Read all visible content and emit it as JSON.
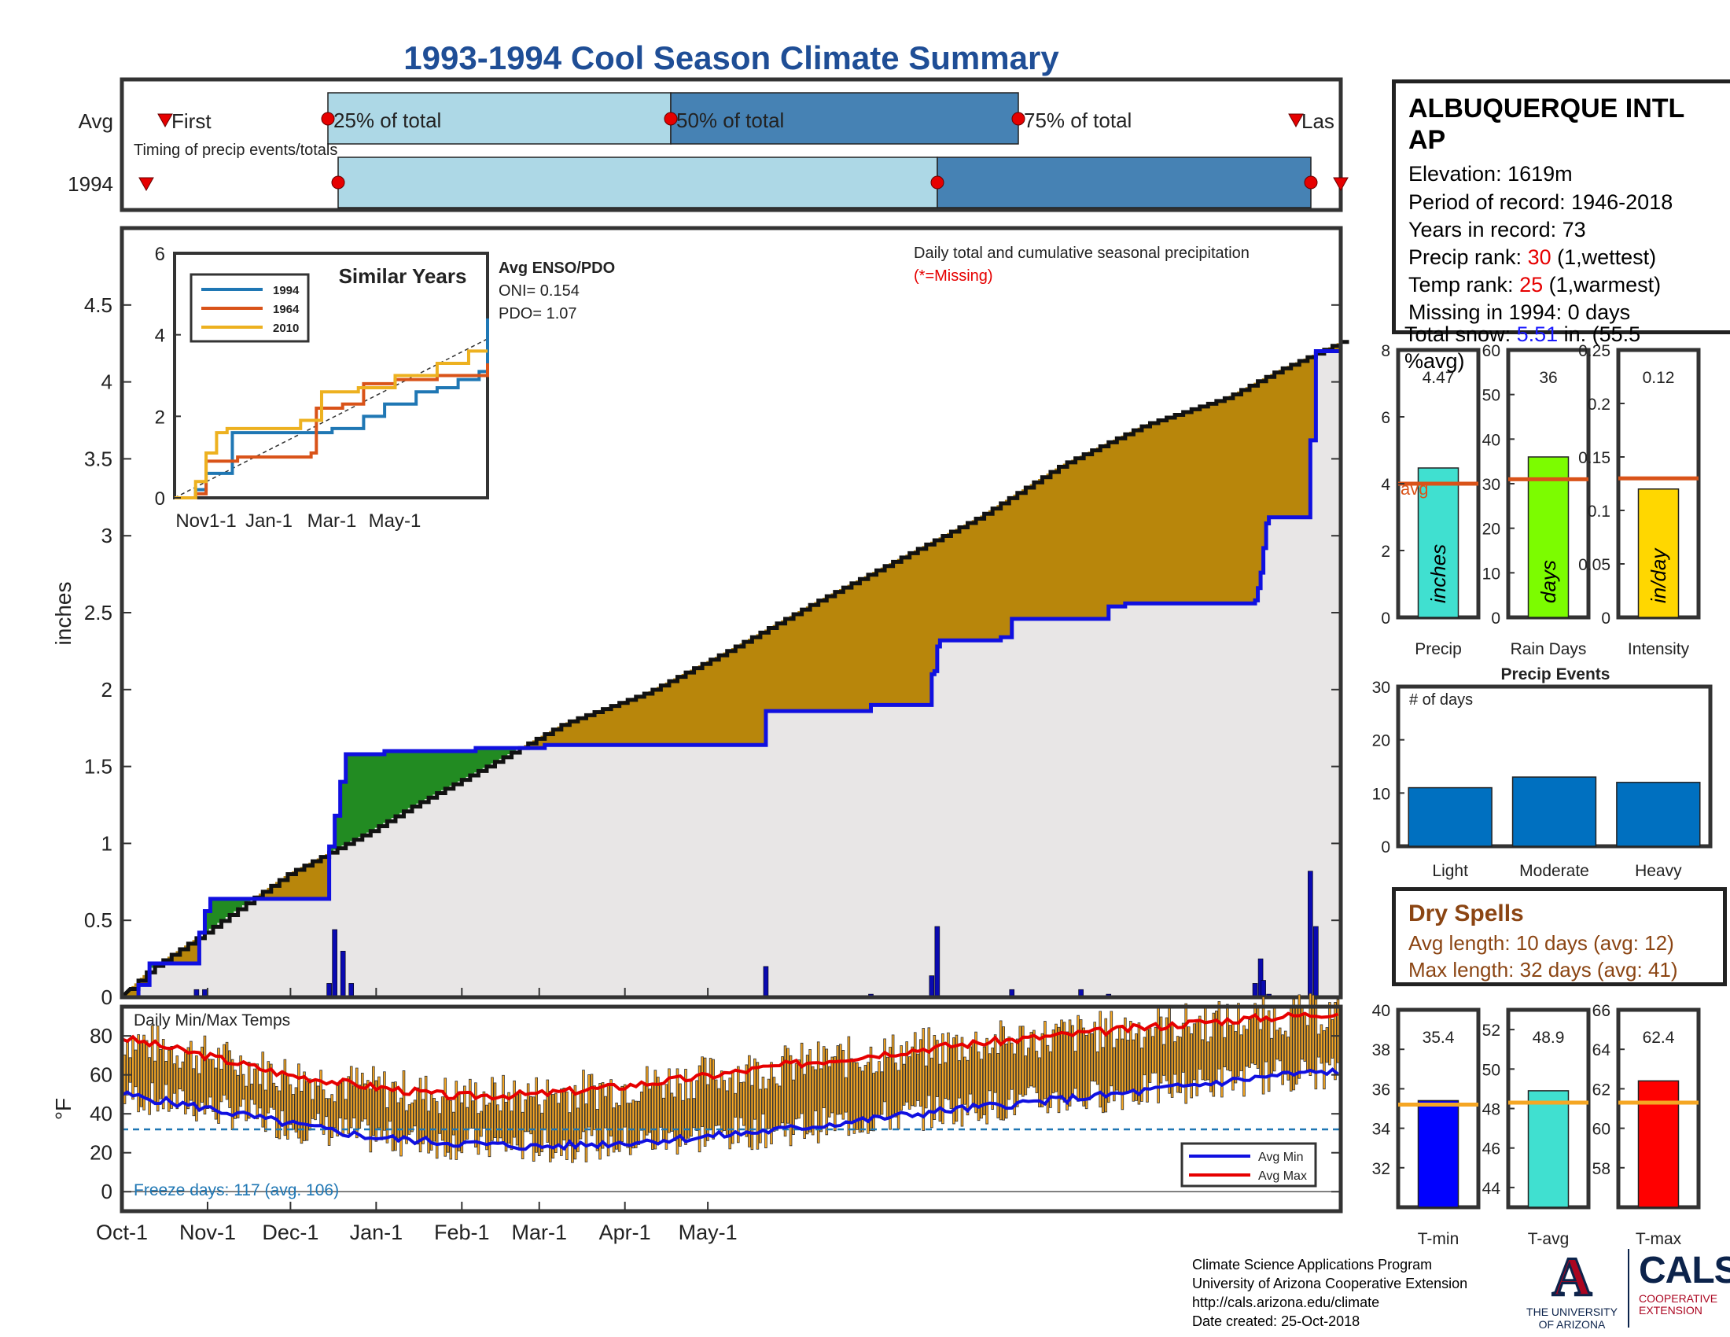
{
  "title": "1993-1994 Cool Season Climate Summary",
  "timing": {
    "row_labels": [
      "Avg",
      "1994"
    ],
    "first_label": "First",
    "last_label": "Las",
    "subtitle": "Timing of precip events/totals",
    "avg_markers": [
      "25% of total",
      "50% of total",
      "75% of total"
    ]
  },
  "station": {
    "name": "ALBUQUERQUE INTL AP",
    "elevation": "Elevation: 1619m",
    "period": "Period of record: 1946-2018",
    "years": "Years in record: 73",
    "precip_rank_label": "Precip rank: ",
    "precip_rank": "30",
    "precip_rank_note": " (1,wettest)",
    "temp_rank_label": "Temp rank: ",
    "temp_rank": "25",
    "temp_rank_note": " (1,warmest)",
    "missing": "Missing in 1994: 0 days",
    "snow_label": "Total snow: ",
    "snow_value": "5.51",
    "snow_unit": " in. (55.5",
    "snow_pct": "%avg)"
  },
  "main_chart": {
    "ylabel": "inches",
    "note": "Daily total and cumulative seasonal precipitation",
    "missing_note": "(*=Missing)"
  },
  "enso": {
    "title": "Avg ENSO/PDO",
    "oni": "ONI= 0.154",
    "pdo": "PDO= 1.07"
  },
  "similar": {
    "title": "Similar Years",
    "legend": [
      "1994",
      "1964",
      "2010"
    ]
  },
  "temp_chart": {
    "title": "Daily Min/Max Temps",
    "ylabel": "°F",
    "freeze": "Freeze days: 117 (avg. 106)",
    "legend": [
      "Avg Min",
      "Avg Max"
    ]
  },
  "precip_events": {
    "title": "Precip Events",
    "ylabel": "# of days"
  },
  "dry_spells": {
    "title": "Dry Spells",
    "avg_length": "Avg length: 10 days (avg: 12)",
    "max_length": "Max length: 32 days (avg: 41)"
  },
  "footer": {
    "line1": "Climate Science Applications Program",
    "line2": "University of Arizona Cooperative Extension",
    "line3": "http://cals.arizona.edu/climate",
    "line4": " Date created: 25-Oct-2018"
  },
  "logos": {
    "ua": "THE UNIVERSITY OF ARIZONA",
    "cals": "CALS",
    "cals_sub": "COOPERATIVE EXTENSION"
  },
  "chart_data": [
    {
      "type": "area",
      "name": "cumulative_precip",
      "x_ticks": [
        "Oct-1",
        "Nov-1",
        "Dec-1",
        "Jan-1",
        "Feb-1",
        "Mar-1",
        "Apr-1",
        "May-1"
      ],
      "ylim": [
        0,
        5
      ],
      "y_ticks": [
        "0",
        "0.5",
        "1",
        "1.5",
        "2",
        "2.5",
        "3",
        "3.5",
        "4",
        "4.5"
      ],
      "avg_cumulative": [
        [
          0,
          0
        ],
        [
          10,
          0.18
        ],
        [
          30,
          0.42
        ],
        [
          60,
          0.8
        ],
        [
          90,
          1.08
        ],
        [
          105,
          1.24
        ],
        [
          130,
          1.48
        ],
        [
          160,
          1.78
        ],
        [
          190,
          1.98
        ],
        [
          220,
          2.26
        ],
        [
          250,
          2.56
        ],
        [
          280,
          2.84
        ],
        [
          310,
          3.12
        ],
        [
          340,
          3.46
        ],
        [
          370,
          3.72
        ],
        [
          400,
          3.9
        ],
        [
          419,
          4.08
        ],
        [
          434,
          4.2
        ],
        [
          441,
          4.26
        ]
      ],
      "year_cumulative": [
        [
          0,
          0
        ],
        [
          6,
          0.08
        ],
        [
          10,
          0.22
        ],
        [
          26,
          0.22
        ],
        [
          28,
          0.42
        ],
        [
          30,
          0.56
        ],
        [
          32,
          0.64
        ],
        [
          47,
          0.64
        ],
        [
          73,
          0.64
        ],
        [
          75,
          0.98
        ],
        [
          77,
          1.18
        ],
        [
          79,
          1.4
        ],
        [
          81,
          1.58
        ],
        [
          95,
          1.6
        ],
        [
          128,
          1.62
        ],
        [
          153,
          1.64
        ],
        [
          178,
          1.64
        ],
        [
          202,
          1.64
        ],
        [
          232,
          1.64
        ],
        [
          233,
          1.86
        ],
        [
          270,
          1.86
        ],
        [
          271,
          1.9
        ],
        [
          292,
          1.9
        ],
        [
          293,
          2.1
        ],
        [
          294,
          2.12
        ],
        [
          295,
          2.28
        ],
        [
          296,
          2.32
        ],
        [
          306,
          2.32
        ],
        [
          318,
          2.34
        ],
        [
          322,
          2.46
        ],
        [
          357,
          2.54
        ],
        [
          362,
          2.54
        ],
        [
          363,
          2.56
        ],
        [
          410,
          2.58
        ],
        [
          411,
          2.66
        ],
        [
          412,
          2.76
        ],
        [
          413,
          2.92
        ],
        [
          414,
          3.08
        ],
        [
          415,
          3.12
        ],
        [
          428,
          3.12
        ],
        [
          430,
          3.62
        ],
        [
          432,
          4.2
        ],
        [
          441,
          4.26
        ]
      ],
      "daily": [
        [
          27,
          0.05
        ],
        [
          30,
          0.05
        ],
        [
          75,
          0.09
        ],
        [
          77,
          0.44
        ],
        [
          80,
          0.3
        ],
        [
          83,
          0.09
        ],
        [
          233,
          0.2
        ],
        [
          271,
          0.02
        ],
        [
          293,
          0.14
        ],
        [
          295,
          0.46
        ],
        [
          322,
          0.05
        ],
        [
          347,
          0.05
        ],
        [
          357,
          0.02
        ],
        [
          410,
          0.09
        ],
        [
          412,
          0.25
        ],
        [
          413,
          0.11
        ],
        [
          415,
          0.02
        ],
        [
          430,
          0.82
        ],
        [
          432,
          0.46
        ]
      ],
      "colors": {
        "above": "#228b22",
        "below": "#b8860b",
        "year_line": "#1010e0",
        "avg_line": "#111111",
        "fill": "#e8e6e6"
      }
    },
    {
      "type": "line",
      "name": "similar_years",
      "x_ticks": [
        "Nov1-1",
        "Jan-1",
        "Mar-1",
        "May-1"
      ],
      "y_ticks": [
        "0",
        "2",
        "4",
        "6"
      ],
      "ylim": [
        0,
        6
      ],
      "series": [
        {
          "name": "1994",
          "color": "#1f77b4",
          "values": [
            [
              0,
              0
            ],
            [
              20,
              0.2
            ],
            [
              30,
              0.6
            ],
            [
              50,
              0.6
            ],
            [
              55,
              1.6
            ],
            [
              95,
              1.6
            ],
            [
              150,
              1.7
            ],
            [
              180,
              2.0
            ],
            [
              200,
              2.3
            ],
            [
              230,
              2.6
            ],
            [
              250,
              2.7
            ],
            [
              270,
              2.9
            ],
            [
              290,
              3.1
            ],
            [
              298,
              4.4
            ]
          ]
        },
        {
          "name": "1964",
          "color": "#d95319",
          "values": [
            [
              0,
              0
            ],
            [
              20,
              0.1
            ],
            [
              30,
              0.9
            ],
            [
              60,
              1.0
            ],
            [
              90,
              1.0
            ],
            [
              130,
              1.1
            ],
            [
              135,
              2.2
            ],
            [
              160,
              2.3
            ],
            [
              180,
              2.8
            ],
            [
              210,
              2.9
            ],
            [
              250,
              3.0
            ],
            [
              298,
              3.3
            ]
          ]
        },
        {
          "name": "2010",
          "color": "#edb120",
          "values": [
            [
              0,
              0
            ],
            [
              20,
              0.4
            ],
            [
              30,
              1.1
            ],
            [
              40,
              1.6
            ],
            [
              50,
              1.7
            ],
            [
              100,
              1.7
            ],
            [
              120,
              1.9
            ],
            [
              140,
              2.6
            ],
            [
              175,
              2.7
            ],
            [
              210,
              3.0
            ],
            [
              250,
              3.3
            ],
            [
              280,
              3.6
            ],
            [
              298,
              3.6
            ]
          ]
        }
      ],
      "trend": [
        [
          0,
          0
        ],
        [
          298,
          3.9
        ]
      ]
    },
    {
      "type": "bar",
      "name": "daily_temps",
      "x_ticks": [
        "Oct-1",
        "Nov-1",
        "Dec-1",
        "Jan-1",
        "Feb-1",
        "Mar-1",
        "Apr-1",
        "May-1"
      ],
      "y_ticks": [
        "0",
        "20",
        "40",
        "60",
        "80"
      ],
      "ylim": [
        -10,
        95
      ],
      "avg_max": [
        [
          0,
          79
        ],
        [
          30,
          70
        ],
        [
          60,
          60
        ],
        [
          90,
          54
        ],
        [
          120,
          49
        ],
        [
          150,
          50
        ],
        [
          180,
          54
        ],
        [
          210,
          59
        ],
        [
          240,
          65
        ],
        [
          270,
          70
        ],
        [
          300,
          75
        ],
        [
          330,
          79
        ],
        [
          360,
          83
        ],
        [
          390,
          87
        ],
        [
          420,
          90
        ],
        [
          441,
          92
        ]
      ],
      "avg_min": [
        [
          0,
          50
        ],
        [
          30,
          43
        ],
        [
          60,
          35
        ],
        [
          90,
          28
        ],
        [
          120,
          25
        ],
        [
          150,
          23
        ],
        [
          180,
          25
        ],
        [
          210,
          28
        ],
        [
          240,
          32
        ],
        [
          270,
          37
        ],
        [
          300,
          42
        ],
        [
          330,
          46
        ],
        [
          360,
          50
        ],
        [
          390,
          55
        ],
        [
          420,
          60
        ],
        [
          441,
          62
        ]
      ],
      "freeze_line": 32
    },
    {
      "type": "bar",
      "name": "precip_total",
      "categories": [
        "Precip"
      ],
      "values": [
        4.47
      ],
      "avg": 4.0,
      "ylim": [
        0,
        8
      ],
      "y_ticks": [
        "0",
        "2",
        "4",
        "6",
        "8"
      ],
      "unit": "inches",
      "avg_label": "avg",
      "color": "#40e0d0"
    },
    {
      "type": "bar",
      "name": "rain_days",
      "categories": [
        "Rain Days"
      ],
      "values": [
        36
      ],
      "avg": 31,
      "ylim": [
        0,
        60
      ],
      "y_ticks": [
        "0",
        "10",
        "20",
        "30",
        "40",
        "50",
        "60"
      ],
      "unit": "days",
      "color": "#7cfc00"
    },
    {
      "type": "bar",
      "name": "intensity",
      "categories": [
        "Intensity"
      ],
      "values": [
        0.12
      ],
      "avg": 0.13,
      "ylim": [
        0,
        0.25
      ],
      "y_ticks": [
        "0",
        "0.05",
        "0.1",
        "0.15",
        "0.2",
        "0.25"
      ],
      "unit": "in/day",
      "color": "#ffd700"
    },
    {
      "type": "bar",
      "name": "precip_events",
      "categories": [
        "Light",
        "Moderate",
        "Heavy"
      ],
      "values": [
        11,
        13,
        12
      ],
      "ylim": [
        0,
        30
      ],
      "y_ticks": [
        "0",
        "10",
        "20",
        "30"
      ],
      "color": "#0070c0"
    },
    {
      "type": "bar",
      "name": "t_min",
      "categories": [
        "T-min"
      ],
      "values": [
        35.4
      ],
      "avg": 35.2,
      "ylim": [
        30,
        40
      ],
      "y_ticks": [
        "32",
        "34",
        "36",
        "38",
        "40"
      ],
      "color": "#0000ff"
    },
    {
      "type": "bar",
      "name": "t_avg",
      "categories": [
        "T-avg"
      ],
      "values": [
        48.9
      ],
      "avg": 48.3,
      "ylim": [
        43,
        53
      ],
      "y_ticks": [
        "44",
        "46",
        "48",
        "50",
        "52"
      ],
      "color": "#40e0d0"
    },
    {
      "type": "bar",
      "name": "t_max",
      "categories": [
        "T-max"
      ],
      "values": [
        62.4
      ],
      "avg": 61.3,
      "ylim": [
        56,
        66
      ],
      "y_ticks": [
        "58",
        "60",
        "62",
        "64",
        "66"
      ],
      "color": "#ff0000"
    }
  ]
}
